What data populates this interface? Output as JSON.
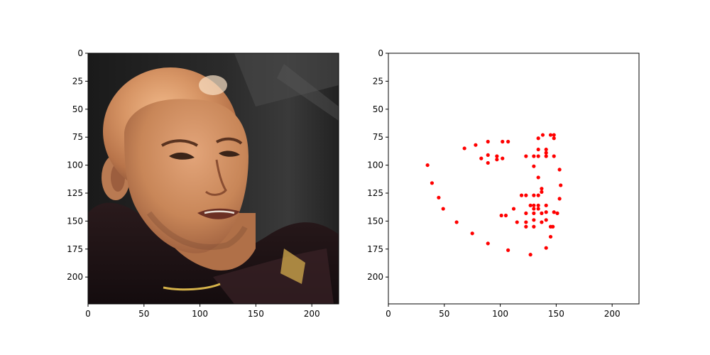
{
  "chart_data": [
    {
      "type": "image",
      "image_description_name": "photo-of-face",
      "xlim": [
        0,
        224
      ],
      "ylim": [
        224,
        0
      ],
      "xticks": [
        0,
        50,
        100,
        150,
        200
      ],
      "yticks": [
        0,
        25,
        50,
        75,
        100,
        125,
        150,
        175,
        200
      ],
      "xtick_labels": [
        "0",
        "50",
        "100",
        "150",
        "200"
      ],
      "ytick_labels": [
        "0",
        "25",
        "50",
        "75",
        "100",
        "125",
        "150",
        "175",
        "200"
      ]
    },
    {
      "type": "scatter",
      "marker_color": "#ff0000",
      "xlim": [
        0,
        224
      ],
      "ylim": [
        224,
        0
      ],
      "xticks": [
        0,
        50,
        100,
        150,
        200
      ],
      "yticks": [
        0,
        25,
        50,
        75,
        100,
        125,
        150,
        175,
        200
      ],
      "xtick_labels": [
        "0",
        "50",
        "100",
        "150",
        "200"
      ],
      "ytick_labels": [
        "0",
        "25",
        "50",
        "75",
        "100",
        "125",
        "150",
        "175",
        "200"
      ],
      "series": [
        {
          "points": [
            [
              35,
              100
            ],
            [
              39,
              116
            ],
            [
              45,
              129
            ],
            [
              49,
              139
            ],
            [
              61,
              151
            ],
            [
              75,
              161
            ],
            [
              89,
              170
            ],
            [
              107,
              176
            ],
            [
              127,
              180
            ],
            [
              141,
              174
            ],
            [
              145,
              164
            ],
            [
              147,
              155
            ],
            [
              151,
              143
            ],
            [
              153,
              130
            ],
            [
              154,
              118
            ],
            [
              153,
              104
            ],
            [
              68,
              85
            ],
            [
              78,
              82
            ],
            [
              83,
              94
            ],
            [
              89,
              79
            ],
            [
              89,
              91
            ],
            [
              89,
              98
            ],
            [
              97,
              92
            ],
            [
              97,
              95
            ],
            [
              102,
              79
            ],
            [
              102,
              94
            ],
            [
              107,
              79
            ],
            [
              123,
              92
            ],
            [
              130,
              92
            ],
            [
              130,
              101
            ],
            [
              134,
              76
            ],
            [
              134,
              86
            ],
            [
              134,
              92
            ],
            [
              138,
              73
            ],
            [
              141,
              86
            ],
            [
              141,
              89
            ],
            [
              141,
              92
            ],
            [
              145,
              73
            ],
            [
              148,
              73
            ],
            [
              148,
              76
            ],
            [
              148,
              92
            ],
            [
              134,
              111
            ],
            [
              137,
              121
            ],
            [
              137,
              124
            ],
            [
              119,
              127
            ],
            [
              123,
              127
            ],
            [
              130,
              127
            ],
            [
              134,
              127
            ],
            [
              112,
              139
            ],
            [
              127,
              136
            ],
            [
              130,
              136
            ],
            [
              130,
              139
            ],
            [
              134,
              136
            ],
            [
              134,
              139
            ],
            [
              141,
              136
            ],
            [
              141,
              142
            ],
            [
              148,
              142
            ],
            [
              101,
              145
            ],
            [
              105,
              145
            ],
            [
              115,
              151
            ],
            [
              123,
              143
            ],
            [
              123,
              151
            ],
            [
              123,
              155
            ],
            [
              130,
              143
            ],
            [
              130,
              149
            ],
            [
              130,
              155
            ],
            [
              137,
              143
            ],
            [
              137,
              151
            ],
            [
              141,
              149
            ],
            [
              145,
              155
            ]
          ]
        }
      ]
    }
  ]
}
